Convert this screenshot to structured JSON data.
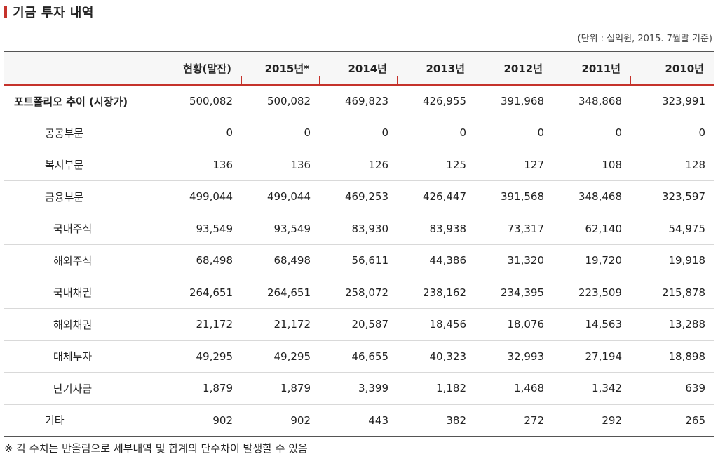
{
  "title": "기금 투자 내역",
  "unit_note": "(단위 : 십억원, 2015. 7월말 기준)",
  "columns": [
    "현황(말잔)",
    "2015년*",
    "2014년",
    "2013년",
    "2012년",
    "2011년",
    "2010년"
  ],
  "rows": [
    {
      "label": "포트폴리오 추이 (시장가)",
      "values": [
        "500,082",
        "500,082",
        "469,823",
        "426,955",
        "391,968",
        "348,868",
        "323,991"
      ]
    },
    {
      "label": "공공부문",
      "values": [
        "0",
        "0",
        "0",
        "0",
        "0",
        "0",
        "0"
      ]
    },
    {
      "label": "복지부문",
      "values": [
        "136",
        "136",
        "126",
        "125",
        "127",
        "108",
        "128"
      ]
    },
    {
      "label": "금융부문",
      "values": [
        "499,044",
        "499,044",
        "469,253",
        "426,447",
        "391,568",
        "348,468",
        "323,597"
      ]
    },
    {
      "label": "국내주식",
      "values": [
        "93,549",
        "93,549",
        "83,930",
        "83,938",
        "73,317",
        "62,140",
        "54,975"
      ]
    },
    {
      "label": "해외주식",
      "values": [
        "68,498",
        "68,498",
        "56,611",
        "44,386",
        "31,320",
        "19,720",
        "19,918"
      ]
    },
    {
      "label": "국내채권",
      "values": [
        "264,651",
        "264,651",
        "258,072",
        "238,162",
        "234,395",
        "223,509",
        "215,878"
      ]
    },
    {
      "label": "해외채권",
      "values": [
        "21,172",
        "21,172",
        "20,587",
        "18,456",
        "18,076",
        "14,563",
        "13,288"
      ]
    },
    {
      "label": "대체투자",
      "values": [
        "49,295",
        "49,295",
        "46,655",
        "40,323",
        "32,993",
        "27,194",
        "18,898"
      ]
    },
    {
      "label": "단기자금",
      "values": [
        "1,879",
        "1,879",
        "3,399",
        "1,182",
        "1,468",
        "1,342",
        "639"
      ]
    },
    {
      "label": "기타",
      "values": [
        "902",
        "902",
        "443",
        "382",
        "272",
        "292",
        "265"
      ]
    }
  ],
  "footnote": "※ 각 수치는 반올림으로 세부내역 및 합계의 단수차이 발생할 수 있음"
}
